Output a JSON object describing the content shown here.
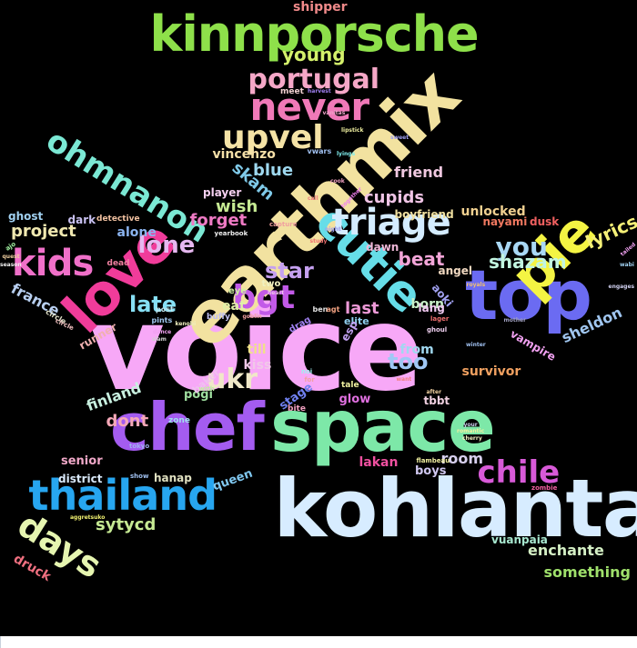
{
  "word_cloud": {
    "background": "#000000",
    "words": [
      {
        "text": "voice",
        "color": "#f7a8f7"
      },
      {
        "text": "kohlanta",
        "color": "#d7ecff"
      },
      {
        "text": "earthmix",
        "color": "#f2e2a0"
      },
      {
        "text": "top",
        "color": "#6b6bf2"
      },
      {
        "text": "space",
        "color": "#7de8a8"
      },
      {
        "text": "chef",
        "color": "#a45cf0"
      },
      {
        "text": "kinnporsche",
        "color": "#8ee04a"
      },
      {
        "text": "pie",
        "color": "#f4f443"
      },
      {
        "text": "love",
        "color": "#f03c9a"
      },
      {
        "text": "cutie",
        "color": "#66dde8"
      },
      {
        "text": "thailand",
        "color": "#27a6f0"
      },
      {
        "text": "never",
        "color": "#f079b8"
      },
      {
        "text": "triage",
        "color": "#d4ecff"
      },
      {
        "text": "ohmnanon",
        "color": "#7be8d4"
      },
      {
        "text": "kids",
        "color": "#f070c9"
      },
      {
        "text": "days",
        "color": "#e6f5b0"
      },
      {
        "text": "bgt",
        "color": "#c25ae8"
      },
      {
        "text": "chile",
        "color": "#d85ad8"
      },
      {
        "text": "upvel",
        "color": "#f5e3a6"
      },
      {
        "text": "portugal",
        "color": "#f5a7c7"
      },
      {
        "text": "ukr",
        "color": "#f0e8c8"
      },
      {
        "text": "you",
        "color": "#a9d8f5"
      },
      {
        "text": "lone",
        "color": "#e6b8f0"
      },
      {
        "text": "star",
        "color": "#c5a0f0"
      },
      {
        "text": "late",
        "color": "#87e0f5"
      },
      {
        "text": "young",
        "color": "#d4f06b"
      },
      {
        "text": "shazam",
        "color": "#c2f5e0"
      },
      {
        "text": "beat",
        "color": "#f3a5d8"
      },
      {
        "text": "too",
        "color": "#a0c8f5"
      },
      {
        "text": "lyrics",
        "color": "#f5f077"
      },
      {
        "text": "sytycd",
        "color": "#c6ea93"
      },
      {
        "text": "cupids",
        "color": "#f0c4e6"
      },
      {
        "text": "project",
        "color": "#f0e8b0"
      },
      {
        "text": "wish",
        "color": "#c6ea93"
      },
      {
        "text": "forget",
        "color": "#ef7ac4"
      },
      {
        "text": "france",
        "color": "#b8cff0"
      },
      {
        "text": "skam",
        "color": "#7fc9e8"
      },
      {
        "text": "blue",
        "color": "#9ed8ef"
      },
      {
        "text": "last",
        "color": "#ee9ad8"
      },
      {
        "text": "room",
        "color": "#d8d0ef"
      },
      {
        "text": "enchante",
        "color": "#d4efc4"
      },
      {
        "text": "something",
        "color": "#9fe06b"
      },
      {
        "text": "sheldon",
        "color": "#a0c6f0"
      },
      {
        "text": "vincenzo",
        "color": "#f5e0a8"
      },
      {
        "text": "friend",
        "color": "#f0c8e0"
      },
      {
        "text": "dont",
        "color": "#f5a8b8"
      },
      {
        "text": "finland",
        "color": "#c8f0e0"
      },
      {
        "text": "till",
        "color": "#f0e08a"
      },
      {
        "text": "kiss",
        "color": "#f0c8e8"
      },
      {
        "text": "from",
        "color": "#a0d8f0"
      },
      {
        "text": "born",
        "color": "#c8f0c8"
      },
      {
        "text": "lakan",
        "color": "#f050a0"
      },
      {
        "text": "druck",
        "color": "#f07080"
      },
      {
        "text": "shipper",
        "color": "#f08a8a"
      },
      {
        "text": "alone",
        "color": "#8bb4f0"
      },
      {
        "text": "dark",
        "color": "#c8c0f0"
      },
      {
        "text": "eat",
        "color": "#e0f0a8"
      },
      {
        "text": "player",
        "color": "#f5d0f0"
      },
      {
        "text": "survivor",
        "color": "#f0a060"
      },
      {
        "text": "senior",
        "color": "#f0a8c8"
      },
      {
        "text": "boys",
        "color": "#d0c8f0"
      },
      {
        "text": "queen",
        "color": "#80c8f0"
      },
      {
        "text": "vuanpaia",
        "color": "#a8e8d0"
      },
      {
        "text": "hanap",
        "color": "#e0e0c0"
      },
      {
        "text": "district",
        "color": "#d8e8f8"
      },
      {
        "text": "unlocked",
        "color": "#f0d090"
      },
      {
        "text": "nayami",
        "color": "#f07860"
      },
      {
        "text": "dusk",
        "color": "#f06060"
      },
      {
        "text": "dawn",
        "color": "#f0b8d8"
      },
      {
        "text": "angel",
        "color": "#f0d8c0"
      },
      {
        "text": "ghost",
        "color": "#a0d0f0"
      },
      {
        "text": "runner",
        "color": "#f0b0b0"
      },
      {
        "text": "pogi",
        "color": "#a0e0a0"
      },
      {
        "text": "glow",
        "color": "#e070e0"
      },
      {
        "text": "stage",
        "color": "#7080f0"
      },
      {
        "text": "tbbt",
        "color": "#f0d0e0"
      },
      {
        "text": "vampire",
        "color": "#f0a0f0"
      },
      {
        "text": "boyfriend",
        "color": "#f0e0a0"
      },
      {
        "text": "detective",
        "color": "#f0c0a0"
      },
      {
        "text": "lang",
        "color": "#f0c8f0"
      },
      {
        "text": "elite",
        "color": "#90d0f0"
      },
      {
        "text": "esp",
        "color": "#c0a0f0"
      },
      {
        "text": "aoki",
        "color": "#a0a0f0"
      },
      {
        "text": "two",
        "color": "#f0f0c0"
      },
      {
        "text": "eye",
        "color": "#d0f0a0"
      },
      {
        "text": "baker",
        "color": "#f0c0f0"
      },
      {
        "text": "buffy",
        "color": "#c0c0f0"
      },
      {
        "text": "bite",
        "color": "#f0a0c0"
      },
      {
        "text": "tale",
        "color": "#f0f0a0"
      },
      {
        "text": "meet",
        "color": "#f0d0d0"
      },
      {
        "text": "ben",
        "color": "#e0e0e0"
      },
      {
        "text": "agt",
        "color": "#f0a080"
      },
      {
        "text": "zone",
        "color": "#a0e0f0"
      },
      {
        "text": "dead",
        "color": "#f080a0"
      },
      {
        "text": "circle",
        "color": "#e0e0c8"
      },
      {
        "text": "pints",
        "color": "#a0c8f0"
      },
      {
        "text": "post",
        "color": "#c0e8f0"
      },
      {
        "text": "tokyo",
        "color": "#a0b0f0"
      },
      {
        "text": "show",
        "color": "#a0c0f0"
      },
      {
        "text": "yearbook",
        "color": "#f0f0f0"
      },
      {
        "text": "capture",
        "color": "#f0a0a0"
      },
      {
        "text": "harvest",
        "color": "#a080f0"
      },
      {
        "text": "vanitas",
        "color": "#f0a0c8"
      },
      {
        "text": "lipstick",
        "color": "#f0f0a0"
      },
      {
        "text": "vwars",
        "color": "#a0c0f0"
      },
      {
        "text": "lyings",
        "color": "#80f0f0"
      },
      {
        "text": "study",
        "color": "#f07070"
      },
      {
        "text": "royals",
        "color": "#f0c070"
      },
      {
        "text": "mother",
        "color": "#a0a0c0"
      },
      {
        "text": "winter",
        "color": "#a0c0f0"
      },
      {
        "text": "ghoul",
        "color": "#f0d0f0"
      },
      {
        "text": "lager",
        "color": "#f07070"
      },
      {
        "text": "flambeau",
        "color": "#f0f0a0"
      },
      {
        "text": "zombie",
        "color": "#f060a0"
      },
      {
        "text": "romantic",
        "color": "#f0f0a0"
      },
      {
        "text": "cherry",
        "color": "#f0f0c0"
      },
      {
        "text": "your",
        "color": "#d0d0f0"
      },
      {
        "text": "after",
        "color": "#f0d0a0"
      },
      {
        "text": "want",
        "color": "#f08080"
      },
      {
        "text": "engages",
        "color": "#d0d0f0"
      },
      {
        "text": "tailed",
        "color": "#f0a0f0"
      },
      {
        "text": "wabi",
        "color": "#a0d0f0"
      },
      {
        "text": "ajo",
        "color": "#a0f0a0"
      },
      {
        "text": "dance",
        "color": "#f0a0f0"
      },
      {
        "text": "slam",
        "color": "#d0d0d0"
      },
      {
        "text": "season",
        "color": "#f0f0f0"
      },
      {
        "text": "quest",
        "color": "#f0d0a0"
      },
      {
        "text": "aggretsuko",
        "color": "#f0f070"
      },
      {
        "text": "kenobi",
        "color": "#f0f0c0"
      },
      {
        "text": "goblin",
        "color": "#f0a0a0"
      },
      {
        "text": "night",
        "color": "#a0a0f0"
      },
      {
        "text": "heart",
        "color": "#f0c0f0"
      },
      {
        "text": "call",
        "color": "#f08080"
      },
      {
        "text": "cook",
        "color": "#f0a0c0"
      },
      {
        "text": "together",
        "color": "#f080f0"
      },
      {
        "text": "sweet",
        "color": "#a0a0f0"
      },
      {
        "text": "drag",
        "color": "#a080f0"
      },
      {
        "text": "noi",
        "color": "#a0f0f0"
      },
      {
        "text": "for",
        "color": "#f0a0a0"
      },
      {
        "text": "with",
        "color": "#c0f0a0"
      },
      {
        "text": "circle",
        "color": "#f0c0c0"
      }
    ]
  }
}
